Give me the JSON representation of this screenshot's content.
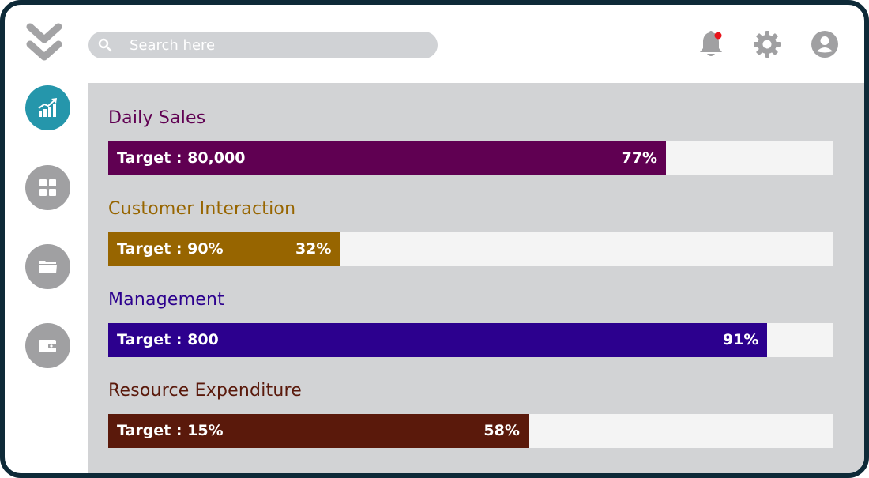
{
  "search": {
    "placeholder": "Search here"
  },
  "colors": {
    "frame": "#0e2a38",
    "panel": "#d2d3d5",
    "track": "#f4f4f4",
    "sidebar_active": "#2596ab",
    "sidebar_inactive": "#a0a0a2",
    "notification_dot": "#e8141b"
  },
  "header_icons": [
    "notification-bell-icon",
    "settings-gear-icon",
    "user-account-icon"
  ],
  "sidebar": {
    "items": [
      {
        "icon": "analytics-chart-icon",
        "active": true
      },
      {
        "icon": "dashboard-grid-icon",
        "active": false
      },
      {
        "icon": "folder-icon",
        "active": false
      },
      {
        "icon": "wallet-icon",
        "active": false
      }
    ]
  },
  "metrics": [
    {
      "title": "Daily Sales",
      "target": "Target : 80,000",
      "percent_label": "77%",
      "progress": 0.77,
      "color": "#600052",
      "title_color": "#600052"
    },
    {
      "title": "Customer Interaction",
      "target": "Target : 90%",
      "percent_label": "32%",
      "progress": 0.32,
      "color": "#976500",
      "title_color": "#976500"
    },
    {
      "title": "Management",
      "target": "Target : 800",
      "percent_label": "91%",
      "progress": 0.91,
      "color": "#2c008e",
      "title_color": "#2c008e"
    },
    {
      "title": "Resource Expenditure",
      "target": "Target : 15%",
      "percent_label": "58%",
      "progress": 0.58,
      "color": "#5a190b",
      "title_color": "#5a190b"
    }
  ]
}
